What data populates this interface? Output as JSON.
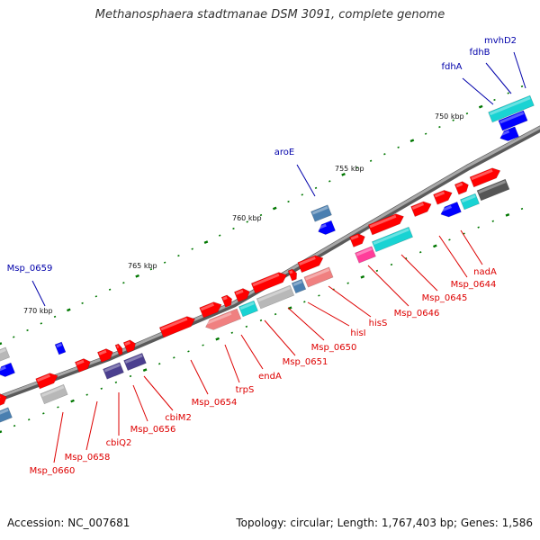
{
  "title": "Methanosphaera stadtmanae DSM 3091, complete genome",
  "footer": {
    "accession": "Accession: NC_007681",
    "summary": "Topology: circular; Length: 1,767,403 bp; Genes: 1,586"
  },
  "colors": {
    "backbone": "#888888",
    "forward_gene": "#ff0000",
    "reverse_gene": "#0000ff",
    "cyan_gene": "#19d3d3",
    "steel_gene": "#4a7fb0",
    "gray_gene": "#b8b8b8",
    "dark_gene": "#555555",
    "navy_gene": "#4b3f8f",
    "pink_gene": "#ff3e9a",
    "salmon_gene": "#f08080",
    "red_label": "#dd0000",
    "blue_label": "#0000aa",
    "tick": "#007700"
  },
  "ticks": [
    {
      "label": "750 kbp"
    },
    {
      "label": "755 kbp"
    },
    {
      "label": "760 kbp"
    },
    {
      "label": "765 kbp"
    },
    {
      "label": "770 kbp"
    }
  ],
  "outer_labels": [
    {
      "text": "mvhD2"
    },
    {
      "text": "fdhB"
    },
    {
      "text": "fdhA"
    },
    {
      "text": "aroE"
    },
    {
      "text": "Msp_0659"
    }
  ],
  "inner_labels": [
    {
      "text": "nadA"
    },
    {
      "text": "Msp_0644"
    },
    {
      "text": "Msp_0645"
    },
    {
      "text": "Msp_0646"
    },
    {
      "text": "hisS"
    },
    {
      "text": "hisI"
    },
    {
      "text": "Msp_0650"
    },
    {
      "text": "Msp_0651"
    },
    {
      "text": "endA"
    },
    {
      "text": "trpS"
    },
    {
      "text": "Msp_0654"
    },
    {
      "text": "cbiM2"
    },
    {
      "text": "Msp_0656"
    },
    {
      "text": "cbiQ2"
    },
    {
      "text": "Msp_0658"
    },
    {
      "text": "Msp_0660"
    }
  ]
}
